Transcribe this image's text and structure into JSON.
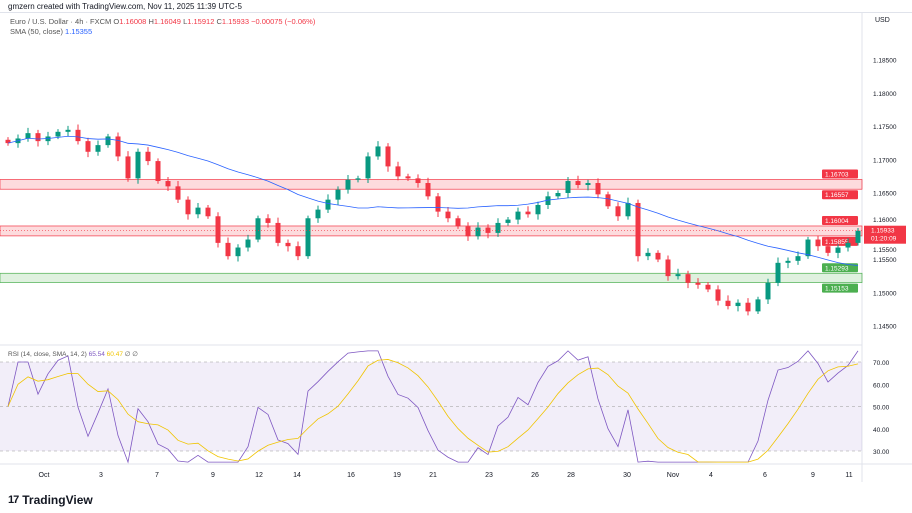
{
  "credit": "gmzern created with TradingView.com, Nov 11, 2025 11:39 UTC-5",
  "legend": {
    "symbol": "Euro / U.S. Dollar · 4h · FXCM",
    "o_label": "O",
    "o": "1.16008",
    "h_label": "H",
    "h": "1.16049",
    "l_label": "L",
    "l": "1.15912",
    "c_label": "C",
    "c": "1.15933",
    "change": "−0.00075 (−0.06%)"
  },
  "sma_legend": {
    "label": "SMA (50, close)",
    "value": "1.15355"
  },
  "rsi_legend": {
    "label": "RSI (14, close, SMA, 14, 2)",
    "rsi": "65.54",
    "sma": "60.47",
    "extra": "∅ ∅"
  },
  "currency": "USD",
  "colors": {
    "up": "#089981",
    "down": "#f23645",
    "sma": "#2962ff",
    "rsi": "#7e57c2",
    "rsi_sma": "#f0c400",
    "resistance": "#f23645",
    "support": "#4caf50"
  },
  "footer": {
    "brand": "TradingView",
    "logo_icon": "tradingview-logo-icon"
  },
  "chart_data": {
    "type": "candlestick",
    "price_ticks": [
      "1.18500",
      "1.18000",
      "1.17500",
      "1.17000",
      "1.16500",
      "1.16000",
      "1.15500",
      "1.15000",
      "1.14500"
    ],
    "price_range": [
      1.143,
      1.189
    ],
    "time_ticks": [
      "Oct",
      "3",
      "7",
      "9",
      "12",
      "14",
      "16",
      "19",
      "21",
      "23",
      "26",
      "28",
      "30",
      "Nov",
      "4",
      "6",
      "9",
      "11"
    ],
    "closes": [
      1.1725,
      1.1732,
      1.174,
      1.1728,
      1.1735,
      1.1742,
      1.1745,
      1.1728,
      1.1712,
      1.1722,
      1.1735,
      1.1705,
      1.1672,
      1.1712,
      1.1698,
      1.1668,
      1.166,
      1.164,
      1.1618,
      1.1628,
      1.1615,
      1.1575,
      1.1555,
      1.1568,
      1.158,
      1.1612,
      1.1605,
      1.1575,
      1.157,
      1.1555,
      1.1612,
      1.1625,
      1.164,
      1.1655,
      1.167,
      1.1672,
      1.1705,
      1.172,
      1.169,
      1.1675,
      1.1672,
      1.1665,
      1.1645,
      1.1622,
      1.1612,
      1.16,
      1.1585,
      1.1598,
      1.159,
      1.1605,
      1.161,
      1.1622,
      1.1618,
      1.1632,
      1.1645,
      1.165,
      1.1668,
      1.1662,
      1.1665,
      1.1648,
      1.163,
      1.1615,
      1.1635,
      1.1555,
      1.156,
      1.155,
      1.1525,
      1.1528,
      1.1515,
      1.1512,
      1.1505,
      1.1488,
      1.148,
      1.1485,
      1.1472,
      1.149,
      1.1515,
      1.1545,
      1.1548,
      1.1555,
      1.158,
      1.157,
      1.156,
      1.1568,
      1.1575,
      1.15933
    ],
    "zones": [
      {
        "type": "resistance",
        "top": 1.16703,
        "bottom": 1.16557,
        "top_label": "1.16703",
        "bottom_label": "1.16557"
      },
      {
        "type": "resistance",
        "top": 1.16004,
        "bottom": 1.15855,
        "top_label": "1.16004",
        "bottom_label": "1.15855"
      },
      {
        "type": "support",
        "top": 1.15293,
        "bottom": 1.15153,
        "top_label": "1.15293",
        "bottom_label": "1.15153"
      }
    ],
    "last_price": {
      "value": "1.15933",
      "countdown": "01:20:09"
    },
    "extra_price_label": "1.15500",
    "rsi_ticks": [
      "70.00",
      "60.00",
      "50.00",
      "40.00",
      "30.00"
    ],
    "rsi_band": [
      30,
      70
    ]
  }
}
